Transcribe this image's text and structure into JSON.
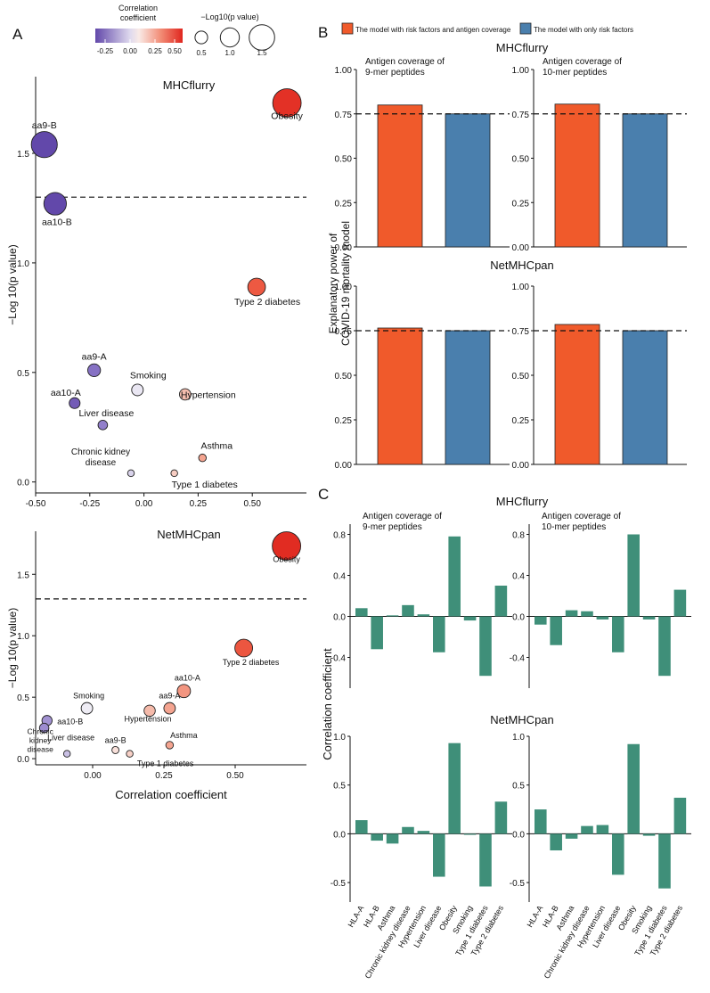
{
  "figure": {
    "panel_labels": [
      "A",
      "B",
      "C"
    ],
    "legend_a": {
      "color_title": "Correlation coefficient",
      "color_ticks": [
        "-0.25",
        "0.00",
        "0.25",
        "0.50"
      ],
      "size_title": "−Log10(p value)",
      "size_ticks": [
        "0.5",
        "1.0",
        "1.5"
      ]
    },
    "legend_b": {
      "items": [
        {
          "label": "The model with risk factors and antigen coverage",
          "color": "#f05a2b"
        },
        {
          "label": "The model with only risk factors",
          "color": "#4a7fad"
        }
      ]
    },
    "colors": {
      "bar_green": "#3f8f79",
      "orange": "#f05a2b",
      "blue": "#4a7fad"
    }
  },
  "chart_data": [
    {
      "type": "scatter",
      "panel": "A",
      "title": "MHCflurry",
      "xlabel": "",
      "ylabel": "−Log 10(p value)",
      "xlim": [
        -0.5,
        0.75
      ],
      "ylim": [
        -0.05,
        1.85
      ],
      "xticks": [
        "-0.50",
        "-0.25",
        "0.00",
        "0.25",
        "0.50"
      ],
      "yticks": [
        "0.0",
        "0.5",
        "1.0",
        "1.5"
      ],
      "threshold_y": 1.3,
      "points": [
        {
          "label": "Obesity",
          "x": 0.66,
          "y": 1.73
        },
        {
          "label": "aa9-B",
          "x": -0.46,
          "y": 1.54
        },
        {
          "label": "aa10-B",
          "x": -0.41,
          "y": 1.27
        },
        {
          "label": "Type 2 diabetes",
          "x": 0.52,
          "y": 0.89
        },
        {
          "label": "aa9-A",
          "x": -0.23,
          "y": 0.51
        },
        {
          "label": "Smoking",
          "x": -0.03,
          "y": 0.42
        },
        {
          "label": "Hypertension",
          "x": 0.19,
          "y": 0.4
        },
        {
          "label": "aa10-A",
          "x": -0.32,
          "y": 0.36
        },
        {
          "label": "Liver disease",
          "x": -0.19,
          "y": 0.26
        },
        {
          "label": "Asthma",
          "x": 0.27,
          "y": 0.11
        },
        {
          "label": "Chronic kidney disease",
          "x": -0.06,
          "y": 0.04
        },
        {
          "label": "Type 1 diabetes",
          "x": 0.14,
          "y": 0.04
        }
      ]
    },
    {
      "type": "scatter",
      "panel": "A",
      "title": "NetMHCpan",
      "xlabel": "Correlation coefficient",
      "ylabel": "−Log 10(p value)",
      "xlim": [
        -0.2,
        0.75
      ],
      "ylim": [
        -0.05,
        1.85
      ],
      "xticks": [
        "0.00",
        "0.25",
        "0.50"
      ],
      "yticks": [
        "0.0",
        "0.5",
        "1.0",
        "1.5"
      ],
      "threshold_y": 1.3,
      "points": [
        {
          "label": "Obesity",
          "x": 0.68,
          "y": 1.73
        },
        {
          "label": "Type 2 diabetes",
          "x": 0.53,
          "y": 0.9
        },
        {
          "label": "aa10-A",
          "x": 0.32,
          "y": 0.55
        },
        {
          "label": "aa9-A",
          "x": 0.27,
          "y": 0.41
        },
        {
          "label": "Smoking",
          "x": -0.02,
          "y": 0.41
        },
        {
          "label": "Hypertension",
          "x": 0.2,
          "y": 0.39
        },
        {
          "label": "aa10-B",
          "x": -0.16,
          "y": 0.31
        },
        {
          "label": "Liver disease",
          "x": -0.17,
          "y": 0.25
        },
        {
          "label": "Asthma",
          "x": 0.27,
          "y": 0.11
        },
        {
          "label": "aa9-B",
          "x": 0.08,
          "y": 0.07
        },
        {
          "label": "Type 1 diabetes",
          "x": 0.13,
          "y": 0.04
        },
        {
          "label": "Chronic kidney disease",
          "x": -0.09,
          "y": 0.04
        }
      ]
    },
    {
      "type": "bar",
      "panel": "B",
      "group_title": "MHCflurry",
      "title": "Antigen coverage of\n9-mer peptides",
      "ylabel": "Explanatory power of\nCOVID-19 mortality model",
      "ylim": [
        0,
        1.0
      ],
      "yticks": [
        "0.00",
        "0.25",
        "0.50",
        "0.75",
        "1.00"
      ],
      "reference_line": 0.75,
      "series": [
        {
          "name": "The model with risk factors and antigen coverage",
          "values": [
            0.8
          ]
        },
        {
          "name": "The model with only risk factors",
          "values": [
            0.75
          ]
        }
      ]
    },
    {
      "type": "bar",
      "panel": "B",
      "group_title": "MHCflurry",
      "title": "Antigen coverage of\n10-mer peptides",
      "ylim": [
        0,
        1.0
      ],
      "yticks": [
        "0.00",
        "0.25",
        "0.50",
        "0.75",
        "1.00"
      ],
      "reference_line": 0.75,
      "series": [
        {
          "name": "The model with risk factors and antigen coverage",
          "values": [
            0.805
          ]
        },
        {
          "name": "The model with only risk factors",
          "values": [
            0.75
          ]
        }
      ]
    },
    {
      "type": "bar",
      "panel": "B",
      "group_title": "NetMHCpan",
      "title": "",
      "ylim": [
        0,
        1.0
      ],
      "yticks": [
        "0.00",
        "0.25",
        "0.50",
        "0.75",
        "1.00"
      ],
      "reference_line": 0.75,
      "series": [
        {
          "name": "The model with risk factors and antigen coverage",
          "values": [
            0.765
          ]
        },
        {
          "name": "The model with only risk factors",
          "values": [
            0.75
          ]
        }
      ]
    },
    {
      "type": "bar",
      "panel": "B",
      "group_title": "NetMHCpan",
      "title": "",
      "ylim": [
        0,
        1.0
      ],
      "yticks": [
        "0.00",
        "0.25",
        "0.50",
        "0.75",
        "1.00"
      ],
      "reference_line": 0.75,
      "series": [
        {
          "name": "The model with risk factors and antigen coverage",
          "values": [
            0.785
          ]
        },
        {
          "name": "The model with only risk factors",
          "values": [
            0.75
          ]
        }
      ]
    },
    {
      "type": "bar",
      "panel": "C",
      "group_title": "MHCflurry",
      "title": "Antigen coverage of\n9-mer peptides",
      "ylabel": "Correlation coefficient",
      "ylim": [
        -0.7,
        0.9
      ],
      "yticks": [
        "-0.4",
        "0.0",
        "0.4",
        "0.8"
      ],
      "ytick_values": [
        -0.4,
        0,
        0.4,
        0.8
      ],
      "categories": [
        "HLA-A",
        "HLA-B",
        "Asthma",
        "Chronic kidney disease",
        "Hypertension",
        "Liver disease",
        "Obesity",
        "Smoking",
        "Type 1 diabetes",
        "Type 2 diabetes"
      ],
      "values": [
        0.08,
        -0.32,
        0.01,
        0.11,
        0.02,
        -0.35,
        0.78,
        -0.04,
        -0.58,
        0.3
      ]
    },
    {
      "type": "bar",
      "panel": "C",
      "group_title": "MHCflurry",
      "title": "Antigen coverage of\n10-mer peptides",
      "ylim": [
        -0.7,
        0.9
      ],
      "yticks": [
        "-0.4",
        "0.0",
        "0.4",
        "0.8"
      ],
      "ytick_values": [
        -0.4,
        0,
        0.4,
        0.8
      ],
      "categories": [
        "HLA-A",
        "HLA-B",
        "Asthma",
        "Chronic kidney disease",
        "Hypertension",
        "Liver disease",
        "Obesity",
        "Smoking",
        "Type 1 diabetes",
        "Type 2 diabetes"
      ],
      "values": [
        -0.08,
        -0.28,
        0.06,
        0.05,
        -0.03,
        -0.35,
        0.8,
        -0.03,
        -0.58,
        0.26
      ]
    },
    {
      "type": "bar",
      "panel": "C",
      "group_title": "NetMHCpan",
      "title": "",
      "ylim": [
        -0.7,
        1.0
      ],
      "yticks": [
        "-0.5",
        "0.0",
        "0.5",
        "1.0"
      ],
      "ytick_values": [
        -0.5,
        0,
        0.5,
        1.0
      ],
      "categories": [
        "HLA-A",
        "HLA-B",
        "Asthma",
        "Chronic kidney disease",
        "Hypertension",
        "Liver disease",
        "Obesity",
        "Smoking",
        "Type 1 diabetes",
        "Type 2 diabetes"
      ],
      "values": [
        0.14,
        -0.07,
        -0.1,
        0.07,
        0.03,
        -0.44,
        0.93,
        -0.01,
        -0.54,
        0.33
      ]
    },
    {
      "type": "bar",
      "panel": "C",
      "group_title": "NetMHCpan",
      "title": "",
      "ylim": [
        -0.7,
        1.0
      ],
      "yticks": [
        "-0.5",
        "0.0",
        "0.5",
        "1.0"
      ],
      "ytick_values": [
        -0.5,
        0,
        0.5,
        1.0
      ],
      "categories": [
        "HLA-A",
        "HLA-B",
        "Asthma",
        "Chronic kidney disease",
        "Hypertension",
        "Liver disease",
        "Obesity",
        "Smoking",
        "Type 1 diabetes",
        "Type 2 diabetes"
      ],
      "values": [
        0.25,
        -0.17,
        -0.05,
        0.08,
        0.09,
        -0.42,
        0.92,
        -0.02,
        -0.56,
        0.37
      ]
    }
  ]
}
